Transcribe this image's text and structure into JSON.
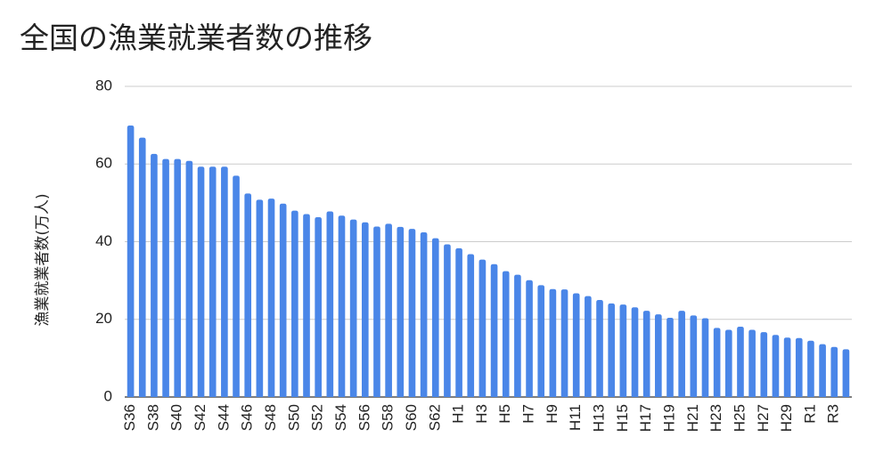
{
  "chart_data": {
    "type": "bar",
    "title": "全国の漁業就業者数の推移",
    "xlabel": "",
    "ylabel": "漁業就業者数(万人)",
    "ylim": [
      0,
      80
    ],
    "yticks": [
      0,
      20,
      40,
      60,
      80
    ],
    "grid": true,
    "legend": "none",
    "bar_color": "#4a86e8",
    "categories": [
      "S36",
      "S37",
      "S38",
      "S39",
      "S40",
      "S41",
      "S42",
      "S43",
      "S44",
      "S45",
      "S46",
      "S47",
      "S48",
      "S49",
      "S50",
      "S51",
      "S52",
      "S53",
      "S54",
      "S55",
      "S56",
      "S57",
      "S58",
      "S59",
      "S60",
      "S61",
      "S62",
      "S63",
      "H1",
      "H2",
      "H3",
      "H4",
      "H5",
      "H6",
      "H7",
      "H8",
      "H9",
      "H10",
      "H11",
      "H12",
      "H13",
      "H14",
      "H15",
      "H16",
      "H17",
      "H18",
      "H19",
      "H20",
      "H21",
      "H22",
      "H23",
      "H24",
      "H25",
      "H26",
      "H27",
      "H28",
      "H29",
      "H30",
      "R1",
      "R2",
      "R3",
      "R4"
    ],
    "values": [
      69.9,
      66.8,
      62.6,
      61.3,
      61.3,
      60.8,
      59.3,
      59.3,
      59.3,
      57.0,
      52.4,
      50.8,
      51.1,
      49.8,
      48.0,
      47.1,
      46.3,
      47.8,
      46.7,
      45.7,
      45.0,
      43.9,
      44.6,
      43.8,
      43.3,
      42.4,
      40.9,
      39.3,
      38.3,
      36.8,
      35.4,
      34.2,
      32.4,
      31.5,
      30.1,
      28.8,
      27.8,
      27.7,
      26.7,
      26.0,
      25.0,
      24.1,
      23.8,
      23.1,
      22.2,
      21.3,
      20.4,
      22.2,
      21.0,
      20.3,
      17.8,
      17.3,
      18.1,
      17.3,
      16.7,
      16.0,
      15.3,
      15.2,
      14.5,
      13.6,
      12.9,
      12.3
    ],
    "xtick_labels": [
      "S36",
      "S38",
      "S40",
      "S42",
      "S44",
      "S46",
      "S48",
      "S50",
      "S52",
      "S54",
      "S56",
      "S58",
      "S60",
      "S62",
      "H1",
      "H3",
      "H5",
      "H7",
      "H9",
      "H11",
      "H13",
      "H15",
      "H17",
      "H19",
      "H21",
      "H23",
      "H25",
      "H27",
      "H29",
      "R1",
      "R3"
    ]
  }
}
